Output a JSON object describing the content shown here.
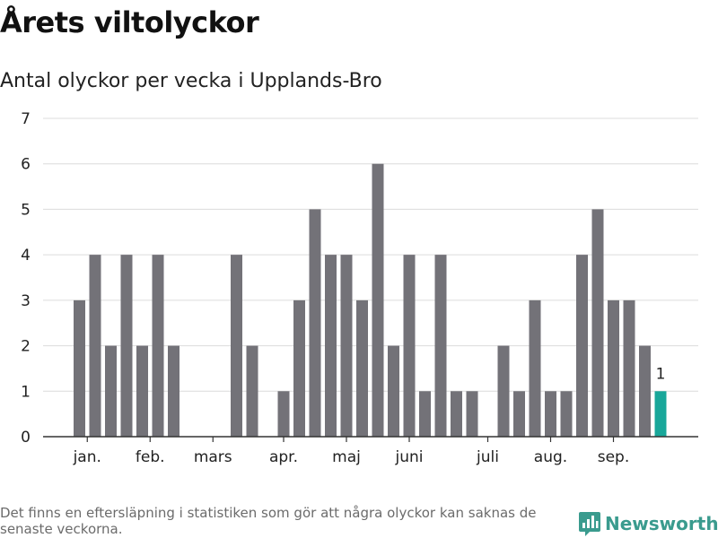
{
  "title": "Årets viltolyckor",
  "subtitle": "Antal olyckor per vecka i Upplands-Bro",
  "footnote": "Det finns en eftersläpning i statistiken som gör att några olyckor kan saknas de senaste veckorna.",
  "brand": {
    "name": "Newsworthy"
  },
  "colors": {
    "bar": "#737278",
    "highlight": "#18a79a",
    "grid": "#dcdcdc",
    "axis": "#333333"
  },
  "chart_data": {
    "type": "bar",
    "x": [
      1,
      2,
      3,
      4,
      5,
      6,
      7,
      8,
      9,
      10,
      11,
      12,
      13,
      14,
      15,
      16,
      17,
      18,
      19,
      20,
      21,
      22,
      23,
      24,
      25,
      26,
      27,
      28,
      29,
      30,
      31,
      32,
      33,
      34,
      35,
      36,
      37,
      38,
      39,
      40
    ],
    "values": [
      3,
      4,
      2,
      4,
      2,
      4,
      2,
      0,
      0,
      0,
      4,
      2,
      0,
      1,
      3,
      5,
      4,
      4,
      3,
      6,
      2,
      4,
      1,
      4,
      1,
      1,
      0,
      2,
      1,
      3,
      1,
      1,
      4,
      5,
      3,
      3,
      2,
      1,
      0,
      0
    ],
    "highlight_index": 37,
    "highlight_label": "1",
    "ylim": [
      0,
      7
    ],
    "yticks": [
      0,
      1,
      2,
      3,
      4,
      5,
      6,
      7
    ],
    "month_ticks": [
      {
        "label": "jan.",
        "week": 1.5
      },
      {
        "label": "feb.",
        "week": 5.5
      },
      {
        "label": "mars",
        "week": 9.5
      },
      {
        "label": "apr.",
        "week": 14
      },
      {
        "label": "maj",
        "week": 18
      },
      {
        "label": "juni",
        "week": 22
      },
      {
        "label": "juli",
        "week": 27
      },
      {
        "label": "aug.",
        "week": 31
      },
      {
        "label": "sep.",
        "week": 35
      }
    ],
    "grid": true
  }
}
